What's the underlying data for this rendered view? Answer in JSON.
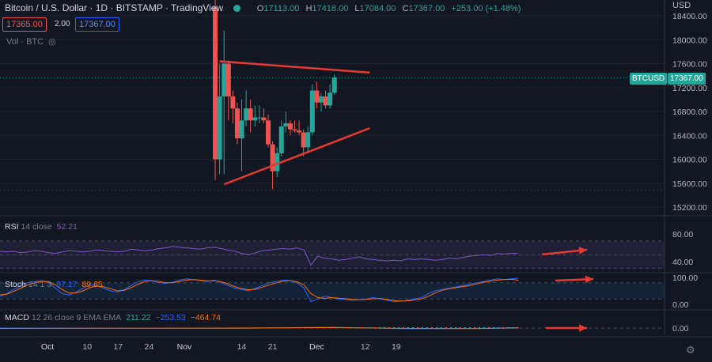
{
  "header": {
    "symbol_title": "Bitcoin / U.S. Dollar · 1D · BITSTAMP · TradingView",
    "open_label": "O",
    "open": "17113.00",
    "high_label": "H",
    "high": "17418.00",
    "low_label": "L",
    "low": "17084.00",
    "close_label": "C",
    "close": "17367.00",
    "change": "+253.00 (+1.48%)"
  },
  "trade": {
    "sell": "17365.00",
    "spread": "2.00",
    "buy": "17367.00"
  },
  "volume_label": "Vol · BTC",
  "eye_icon_glyph": "◎",
  "currency": "USD",
  "symbol_tag": "BTCUSD",
  "last_price_tag": "17367.00",
  "colors": {
    "up": "#26a69a",
    "down": "#ef5350",
    "trendline": "#e53935",
    "rsi": "#7e57c2",
    "stoch_k": "#2962ff",
    "stoch_d": "#ff6d00",
    "arrow": "#e53935"
  },
  "indicators": {
    "rsi": {
      "name": "RSI",
      "params": "14 close",
      "value": "52.21"
    },
    "stoch": {
      "name": "Stoch",
      "params": "14 1 3",
      "k": "97.17",
      "d": "89.65"
    },
    "macd": {
      "name": "MACD",
      "params": "12 26 close 9 EMA EMA",
      "hist": "211.22",
      "macd": "−253.53",
      "signal": "−464.74"
    }
  },
  "gear_icon_glyph": "⚙",
  "chart_data": {
    "type": "candlestick",
    "title": "Bitcoin / U.S. Dollar · 1D · BITSTAMP · TradingView",
    "price_axis": {
      "ticks": [
        15200,
        15600,
        16000,
        16400,
        16800,
        17200,
        17600,
        18000,
        18400
      ],
      "range": [
        15000,
        18600
      ]
    },
    "time_axis": {
      "labels": [
        "Oct",
        "10",
        "17",
        "24",
        "Nov",
        "14",
        "21",
        "Dec",
        "12",
        "19"
      ]
    },
    "last_price": 17367.0,
    "candles": [
      {
        "date": "2022-11-08",
        "o": 18550,
        "h": 18700,
        "l": 15650,
        "c": 16000
      },
      {
        "date": "2022-11-09",
        "o": 16000,
        "h": 17600,
        "l": 15750,
        "c": 17050
      },
      {
        "date": "2022-11-10",
        "o": 17050,
        "h": 18150,
        "l": 15750,
        "c": 17600
      },
      {
        "date": "2022-11-11",
        "o": 17600,
        "h": 17650,
        "l": 16650,
        "c": 17050
      },
      {
        "date": "2022-11-12",
        "o": 17050,
        "h": 17150,
        "l": 16600,
        "c": 16850
      },
      {
        "date": "2022-11-13",
        "o": 16850,
        "h": 16950,
        "l": 16250,
        "c": 16350
      },
      {
        "date": "2022-11-14",
        "o": 16350,
        "h": 17000,
        "l": 15800,
        "c": 16650
      },
      {
        "date": "2022-11-15",
        "o": 16650,
        "h": 17150,
        "l": 16550,
        "c": 16850
      },
      {
        "date": "2022-11-16",
        "o": 16850,
        "h": 17000,
        "l": 16450,
        "c": 16650
      },
      {
        "date": "2022-11-17",
        "o": 16650,
        "h": 16900,
        "l": 16550,
        "c": 16700
      },
      {
        "date": "2022-11-18",
        "o": 16700,
        "h": 16900,
        "l": 16600,
        "c": 16700
      },
      {
        "date": "2022-11-19",
        "o": 16700,
        "h": 16850,
        "l": 16600,
        "c": 16650
      },
      {
        "date": "2022-11-20",
        "o": 16650,
        "h": 16750,
        "l": 16200,
        "c": 16250
      },
      {
        "date": "2022-11-21",
        "o": 16250,
        "h": 16300,
        "l": 15500,
        "c": 15800
      },
      {
        "date": "2022-11-22",
        "o": 15800,
        "h": 16200,
        "l": 15700,
        "c": 16100
      },
      {
        "date": "2022-11-23",
        "o": 16100,
        "h": 16650,
        "l": 16050,
        "c": 16550
      },
      {
        "date": "2022-11-24",
        "o": 16550,
        "h": 16800,
        "l": 16450,
        "c": 16600
      },
      {
        "date": "2022-11-25",
        "o": 16600,
        "h": 16650,
        "l": 16400,
        "c": 16500
      },
      {
        "date": "2022-11-26",
        "o": 16500,
        "h": 16650,
        "l": 16450,
        "c": 16480
      },
      {
        "date": "2022-11-27",
        "o": 16480,
        "h": 16650,
        "l": 16400,
        "c": 16450
      },
      {
        "date": "2022-11-28",
        "o": 16450,
        "h": 16500,
        "l": 16050,
        "c": 16200
      },
      {
        "date": "2022-11-29",
        "o": 16200,
        "h": 16550,
        "l": 16100,
        "c": 16450
      },
      {
        "date": "2022-11-30",
        "o": 16450,
        "h": 17250,
        "l": 16400,
        "c": 17150
      },
      {
        "date": "2022-12-01",
        "o": 17150,
        "h": 17300,
        "l": 16850,
        "c": 16950
      },
      {
        "date": "2022-12-02",
        "o": 16950,
        "h": 17100,
        "l": 16800,
        "c": 17050
      },
      {
        "date": "2022-12-03",
        "o": 17050,
        "h": 17150,
        "l": 16850,
        "c": 16900
      },
      {
        "date": "2022-12-04",
        "o": 16900,
        "h": 17250,
        "l": 16850,
        "c": 17113
      },
      {
        "date": "2022-12-05",
        "o": 17113,
        "h": 17418,
        "l": 17084,
        "c": 17367
      }
    ],
    "trendlines": [
      {
        "from": {
          "date": "2022-11-09",
          "price": 17640
        },
        "to": {
          "date": "2022-12-13",
          "price": 17450
        }
      },
      {
        "from": {
          "date": "2022-11-10",
          "price": 15580
        },
        "to": {
          "date": "2022-12-13",
          "price": 16520
        }
      }
    ],
    "rsi": {
      "ticks": [
        40,
        80
      ],
      "levels": [
        30,
        50,
        70
      ],
      "last": 52.21,
      "values": [
        55,
        54,
        55,
        53,
        54,
        56,
        55,
        53,
        52,
        54,
        56,
        55,
        54,
        55,
        57,
        56,
        55,
        54,
        55,
        58,
        57,
        56,
        57,
        59,
        60,
        62,
        61,
        60,
        59,
        58,
        60,
        61,
        59,
        57,
        55,
        52,
        50,
        53,
        56,
        57,
        58,
        59,
        58,
        60,
        57,
        35,
        48,
        45,
        44,
        42,
        43,
        45,
        47,
        44,
        43,
        42,
        41,
        42,
        41,
        44,
        43,
        44,
        43,
        42,
        43,
        45,
        44,
        46,
        48,
        49,
        50,
        49,
        52,
        51,
        52,
        52.21
      ]
    },
    "stoch": {
      "ticks": [
        0,
        100
      ],
      "levels": [
        20,
        80
      ],
      "k_last": 97.17,
      "d_last": 89.65,
      "k": [
        30,
        40,
        55,
        70,
        80,
        85,
        88,
        82,
        60,
        40,
        35,
        45,
        60,
        72,
        70,
        60,
        50,
        45,
        55,
        70,
        85,
        90,
        88,
        80,
        78,
        82,
        90,
        95,
        92,
        88,
        85,
        90,
        80,
        70,
        60,
        55,
        50,
        60,
        70,
        80,
        85,
        90,
        88,
        80,
        60,
        10,
        20,
        30,
        25,
        20,
        18,
        15,
        18,
        20,
        25,
        20,
        15,
        10,
        12,
        15,
        20,
        25,
        40,
        50,
        55,
        60,
        65,
        70,
        75,
        80,
        85,
        90,
        95,
        92,
        95,
        97.17
      ],
      "d": [
        35,
        38,
        48,
        60,
        72,
        80,
        85,
        84,
        72,
        55,
        42,
        42,
        50,
        62,
        68,
        65,
        58,
        50,
        52,
        62,
        75,
        85,
        88,
        85,
        80,
        80,
        85,
        90,
        92,
        90,
        87,
        88,
        84,
        76,
        66,
        58,
        54,
        56,
        64,
        72,
        80,
        86,
        88,
        84,
        72,
        40,
        25,
        22,
        25,
        23,
        21,
        18,
        17,
        18,
        21,
        22,
        18,
        14,
        12,
        13,
        16,
        20,
        30,
        42,
        52,
        58,
        62,
        66,
        70,
        76,
        82,
        86,
        90,
        92,
        93,
        89.65
      ]
    },
    "macd": {
      "ticks": [
        0.0
      ],
      "hist_last": 211.22,
      "macd_last": -253.53,
      "signal_last": -464.74
    },
    "annotations": [
      {
        "type": "arrow",
        "panel": "rsi",
        "direction": "up-right"
      },
      {
        "type": "arrow",
        "panel": "stoch",
        "direction": "right"
      },
      {
        "type": "arrow",
        "panel": "macd",
        "direction": "right"
      }
    ]
  }
}
